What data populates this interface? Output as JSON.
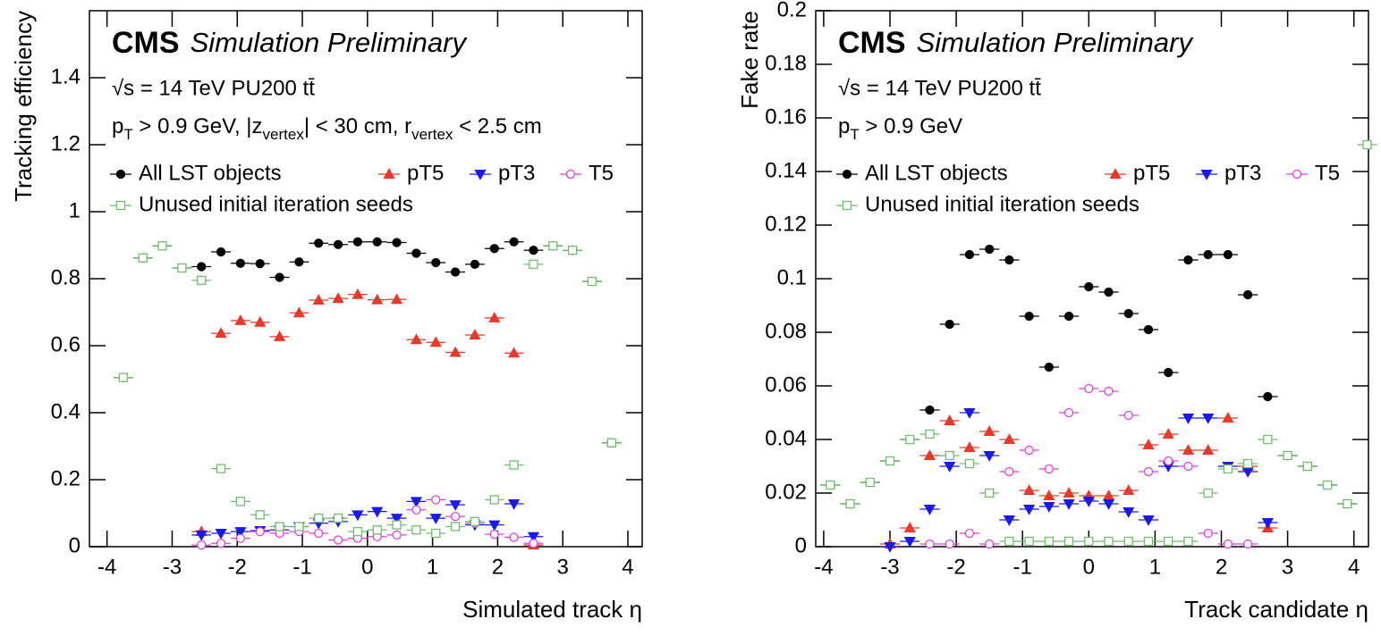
{
  "chart_data": [
    {
      "type": "scatter",
      "cms_label": "CMS",
      "cms_sublabel": "Simulation Preliminary",
      "energy_label": "√s = 14 TeV PU200 tt̄",
      "cut_label": [
        "p",
        "T",
        " > 0.9 GeV, |z",
        "vertex",
        "| < 30 cm, r",
        "vertex",
        " < 2.5 cm"
      ],
      "x_label": "Simulated track η",
      "y_label": "Tracking efficiency",
      "xlim": [
        -4.27,
        4.22
      ],
      "ylim": [
        0,
        1.6
      ],
      "xticks": [
        -4,
        -3,
        -2,
        -1,
        0,
        1,
        2,
        3,
        4
      ],
      "yticks": [
        0,
        0.2,
        0.4,
        0.6,
        0.8,
        1,
        1.2,
        1.4
      ],
      "x": [
        -3.75,
        -3.45,
        -3.15,
        -2.85,
        -2.55,
        -2.25,
        -1.95,
        -1.65,
        -1.35,
        -1.05,
        -0.75,
        -0.45,
        -0.15,
        0.15,
        0.45,
        0.75,
        1.05,
        1.35,
        1.65,
        1.95,
        2.25,
        2.55,
        2.85,
        3.15,
        3.45,
        3.75
      ],
      "series": [
        {
          "name": "All LST objects",
          "color": "#000000",
          "marker": "circle",
          "values": [
            0.505,
            0.862,
            0.898,
            0.832,
            0.836,
            0.88,
            0.846,
            0.845,
            0.804,
            0.85,
            0.906,
            0.902,
            0.91,
            0.91,
            0.908,
            0.876,
            0.848,
            0.82,
            0.843,
            0.89,
            0.91,
            0.885,
            0.898,
            0.885,
            0.792,
            0.31
          ]
        },
        {
          "name": "pT5",
          "color": "#e8392b",
          "marker": "triangle-up",
          "values": [
            null,
            null,
            null,
            null,
            0.045,
            0.637,
            0.675,
            0.67,
            0.627,
            0.698,
            0.736,
            0.741,
            0.753,
            0.737,
            0.738,
            0.618,
            0.61,
            0.58,
            0.632,
            0.683,
            0.578,
            0.005,
            null,
            null,
            null,
            null
          ]
        },
        {
          "name": "pT3",
          "color": "#1a1aeb",
          "marker": "triangle-down",
          "values": [
            null,
            null,
            null,
            null,
            0.035,
            0.04,
            0.045,
            0.048,
            0.05,
            0.06,
            0.07,
            0.075,
            0.095,
            0.105,
            0.085,
            0.135,
            0.085,
            0.125,
            0.065,
            0.065,
            0.128,
            0.03,
            null,
            null,
            null,
            null
          ]
        },
        {
          "name": "T5",
          "color": "#e040e0",
          "marker": "open-circle",
          "values": [
            null,
            null,
            null,
            null,
            0.005,
            0.01,
            0.025,
            0.045,
            0.04,
            0.045,
            0.04,
            0.02,
            0.025,
            0.03,
            0.035,
            0.11,
            0.14,
            0.09,
            0.07,
            0.037,
            0.028,
            0.01,
            null,
            null,
            null,
            null
          ]
        },
        {
          "name": "Unused initial iteration seeds",
          "color": "#6fbf6f",
          "marker": "open-square",
          "values": [
            0.505,
            0.862,
            0.898,
            0.832,
            0.795,
            0.233,
            0.135,
            0.095,
            0.06,
            0.06,
            0.085,
            0.085,
            0.045,
            0.05,
            0.065,
            0.05,
            0.04,
            0.06,
            0.075,
            0.14,
            0.244,
            0.843,
            0.898,
            0.885,
            0.792,
            0.31
          ]
        }
      ]
    },
    {
      "type": "scatter",
      "cms_label": "CMS",
      "cms_sublabel": "Simulation Preliminary",
      "energy_label": "√s = 14 TeV PU200 tt̄",
      "cut_label": [
        "p",
        "T",
        " > 0.9 GeV"
      ],
      "x_label": "Track candidate η",
      "y_label": "Fake rate",
      "xlim": [
        -4.12,
        4.22
      ],
      "ylim": [
        0,
        0.2
      ],
      "xticks": [
        -4,
        -3,
        -2,
        -1,
        0,
        1,
        2,
        3,
        4
      ],
      "yticks": [
        0,
        0.02,
        0.04,
        0.06,
        0.08,
        0.1,
        0.12,
        0.14,
        0.16,
        0.18,
        0.2
      ],
      "x": [
        -3.9,
        -3.6,
        -3.3,
        -3.0,
        -2.7,
        -2.4,
        -2.1,
        -1.8,
        -1.5,
        -1.2,
        -0.9,
        -0.6,
        -0.3,
        0,
        0.3,
        0.6,
        0.9,
        1.2,
        1.5,
        1.8,
        2.1,
        2.4,
        2.7,
        3.0,
        3.3,
        3.6,
        3.9,
        4.2
      ],
      "series": [
        {
          "name": "All LST objects",
          "color": "#000000",
          "marker": "circle",
          "values": [
            0.023,
            0.016,
            0.024,
            0.032,
            0.04,
            0.051,
            0.083,
            0.109,
            0.111,
            0.107,
            0.086,
            0.067,
            0.086,
            0.097,
            0.095,
            0.087,
            0.081,
            0.065,
            0.107,
            0.109,
            0.109,
            0.094,
            0.056,
            0.034,
            0.03,
            0.023,
            0.016,
            null
          ]
        },
        {
          "name": "pT5",
          "color": "#e8392b",
          "marker": "triangle-up",
          "values": [
            null,
            null,
            null,
            0.001,
            0.007,
            0.034,
            0.047,
            0.037,
            0.043,
            0.04,
            0.021,
            0.019,
            0.02,
            0.019,
            0.019,
            0.021,
            0.038,
            0.042,
            0.036,
            0.036,
            0.048,
            0.03,
            0.007,
            null,
            null,
            null,
            null,
            null
          ]
        },
        {
          "name": "pT3",
          "color": "#1a1aeb",
          "marker": "triangle-down",
          "values": [
            null,
            null,
            null,
            0.0,
            0.002,
            0.014,
            0.03,
            0.05,
            0.034,
            0.01,
            0.014,
            0.015,
            0.016,
            0.017,
            0.016,
            0.013,
            0.01,
            0.03,
            0.048,
            0.048,
            0.03,
            0.028,
            0.009,
            null,
            null,
            null,
            null,
            null
          ]
        },
        {
          "name": "T5",
          "color": "#e040e0",
          "marker": "open-circle",
          "values": [
            null,
            null,
            null,
            null,
            null,
            0.001,
            0.001,
            0.005,
            0.001,
            0.028,
            0.036,
            0.029,
            0.05,
            0.059,
            0.058,
            0.049,
            0.028,
            0.032,
            0.03,
            0.005,
            0.001,
            0.001,
            null,
            null,
            null,
            null,
            null,
            null
          ]
        },
        {
          "name": "Unused initial iteration seeds",
          "color": "#6fbf6f",
          "marker": "open-square",
          "values": [
            0.023,
            0.016,
            0.024,
            0.032,
            0.04,
            0.042,
            0.034,
            0.031,
            0.02,
            0.002,
            0.002,
            0.002,
            0.002,
            0.002,
            0.002,
            0.002,
            0.002,
            0.002,
            0.002,
            0.02,
            0.029,
            0.031,
            0.04,
            0.034,
            0.03,
            0.023,
            0.016,
            0.15
          ]
        }
      ]
    }
  ]
}
